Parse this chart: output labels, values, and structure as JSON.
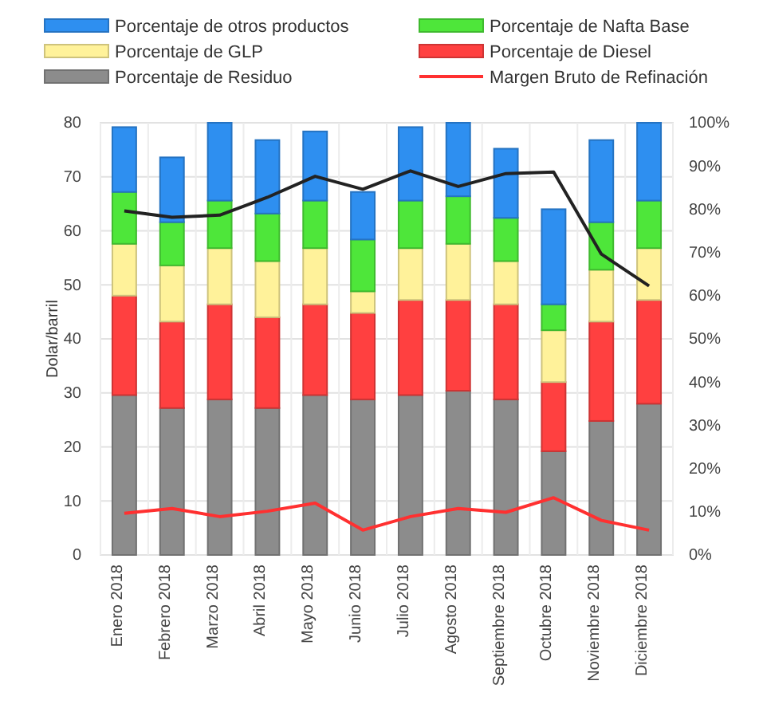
{
  "chart_data": {
    "type": "bar",
    "stacked": true,
    "ylabel": "Dolar/barril",
    "categories": [
      "Enero 2018",
      "Febrero 2018",
      "Marzo 2018",
      "Abril 2018",
      "Mayo 2018",
      "Junio 2018",
      "Julio 2018",
      "Agosto 2018",
      "Septiembre 2018",
      "Octubre 2018",
      "Noviembre 2018",
      "Diciembre 2018"
    ],
    "series": [
      {
        "name": "Porcentaje de Residuo",
        "color": "#8c8c8c",
        "axis": "y2",
        "values": [
          37,
          34,
          36,
          34,
          37,
          36,
          37,
          38,
          36,
          24,
          31,
          35
        ]
      },
      {
        "name": "Porcentaje de Diesel",
        "color": "#ff4040",
        "axis": "y2",
        "values": [
          23,
          20,
          22,
          21,
          21,
          20,
          22,
          21,
          22,
          16,
          23,
          24
        ]
      },
      {
        "name": "Porcentaje de GLP",
        "color": "#fff29a",
        "axis": "y2",
        "values": [
          12,
          13,
          13,
          13,
          13,
          5,
          12,
          13,
          10,
          12,
          12,
          12
        ]
      },
      {
        "name": "Porcentaje de Nafta Base",
        "color": "#4ee63a",
        "axis": "y2",
        "values": [
          12,
          10,
          11,
          11,
          11,
          12,
          11,
          11,
          10,
          6,
          11,
          11
        ]
      },
      {
        "name": "Porcentaje de otros productos",
        "color": "#2e8ff0",
        "axis": "y2",
        "values": [
          15,
          15,
          18,
          17,
          16,
          11,
          17,
          17,
          16,
          22,
          19,
          18
        ]
      },
      {
        "name": "Margen Bruto de Refinación",
        "type": "line",
        "color": "#ff3030",
        "axis": "y",
        "values": [
          7.7,
          8.6,
          7.1,
          8.1,
          9.6,
          4.6,
          7.1,
          8.6,
          7.9,
          10.6,
          6.4,
          4.6
        ]
      },
      {
        "type": "line",
        "color": "#222222",
        "axis": "y",
        "values": [
          63.7,
          62.5,
          62.9,
          66.2,
          70.1,
          67.7,
          71.1,
          68.2,
          70.6,
          70.9,
          55.7,
          49.8
        ]
      }
    ],
    "ylim": [
      0,
      80
    ],
    "yticks": [
      0,
      10,
      20,
      30,
      40,
      50,
      60,
      70,
      80
    ],
    "y2lim": [
      0,
      100
    ],
    "y2ticks": [
      {
        "value": 0,
        "label": "0%"
      },
      {
        "value": 10,
        "label": "10%"
      },
      {
        "value": 20,
        "label": "20%"
      },
      {
        "value": 30,
        "label": "30%"
      },
      {
        "value": 40,
        "label": "40%"
      },
      {
        "value": 50,
        "label": "50%"
      },
      {
        "value": 60,
        "label": "60%"
      },
      {
        "value": 70,
        "label": "70%"
      },
      {
        "value": 80,
        "label": "80%"
      },
      {
        "value": 90,
        "label": "90%"
      },
      {
        "value": 100,
        "label": "100%"
      }
    ],
    "grid": true,
    "legend": "top",
    "marker": "none",
    "line_style": "solid"
  }
}
